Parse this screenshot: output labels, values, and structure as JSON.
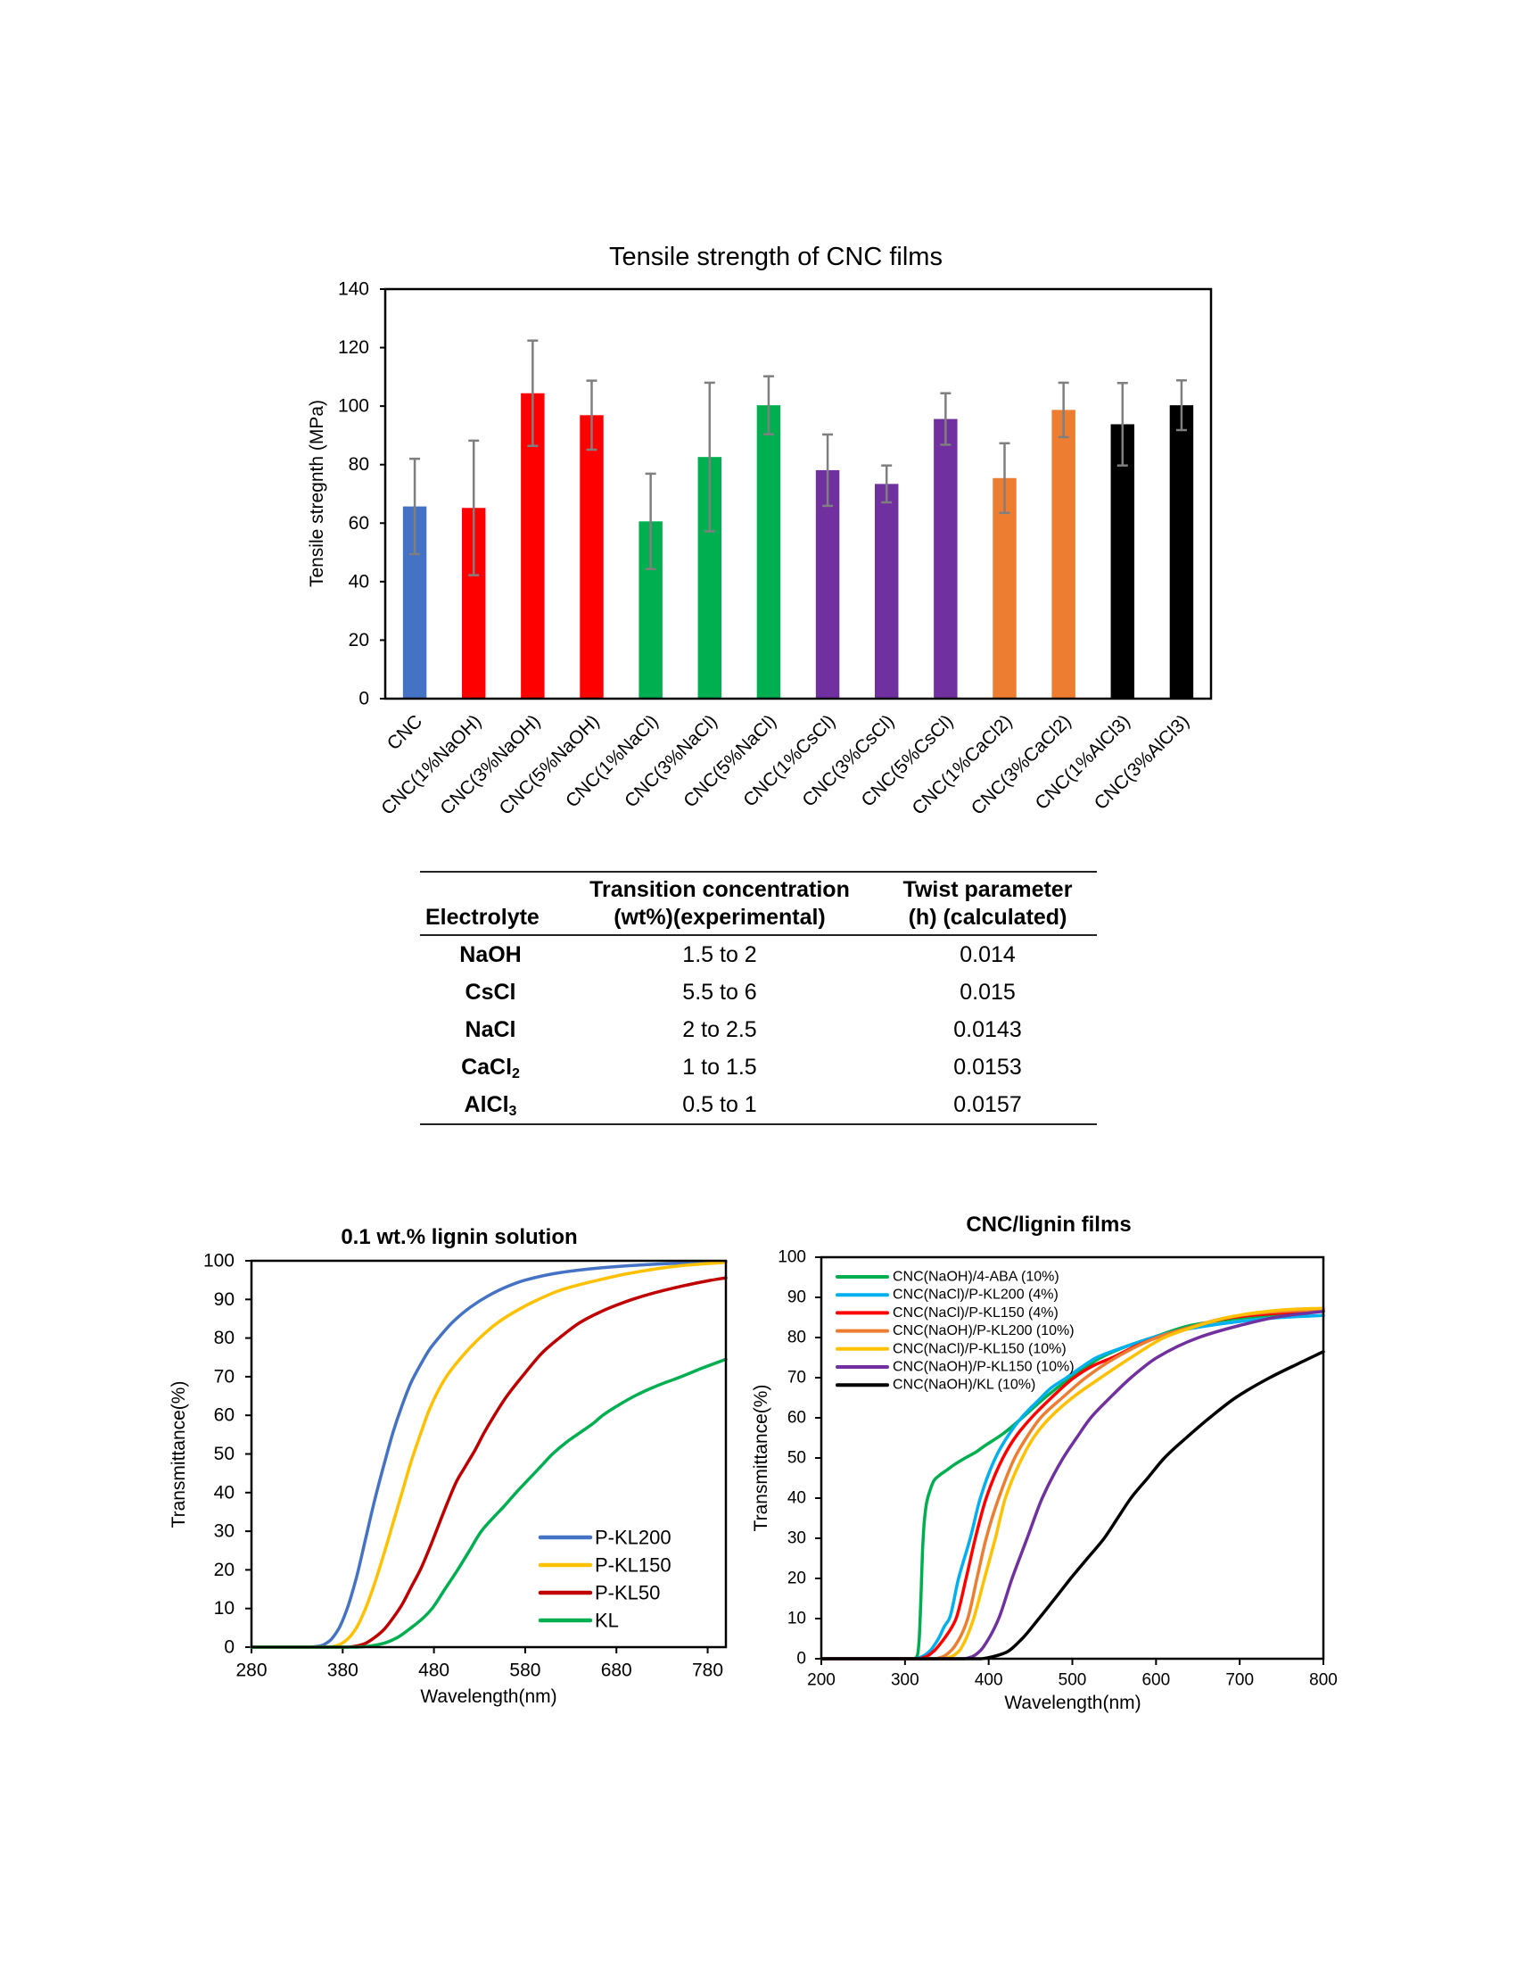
{
  "chart_data": [
    {
      "type": "bar",
      "title": "Tensile strength of CNC films",
      "xlabel": "",
      "ylabel": "Tensile stregnth (MPa)",
      "ylim": [
        0,
        140
      ],
      "yticks": [
        0,
        20,
        40,
        60,
        80,
        100,
        120,
        140
      ],
      "grid": false,
      "categories": [
        "CNC",
        "CNC(1%NaOH)",
        "CNC(3%NaOH)",
        "CNC(5%NaOH)",
        "CNC(1%NaCl)",
        "CNC(3%NaCl)",
        "CNC(5%NaCl)",
        "CNC(1%CsCl)",
        "CNC(3%CsCl)",
        "CNC(5%CsCl)",
        "CNC(1%CaCl2)",
        "CNC(3%CaCl2)",
        "CNC(1%AlCl3)",
        "CNC(3%AlCl3)"
      ],
      "values": [
        65.7,
        65.2,
        104.4,
        96.9,
        60.6,
        82.6,
        100.3,
        78.1,
        73.4,
        95.6,
        75.4,
        98.7,
        93.8,
        100.3
      ],
      "errors": [
        16.3,
        23.0,
        18.0,
        11.8,
        16.3,
        25.4,
        9.9,
        12.2,
        6.3,
        8.8,
        11.9,
        9.3,
        14.1,
        8.5
      ],
      "colors": [
        "#4472C4",
        "#FF0000",
        "#FF0000",
        "#FF0000",
        "#00B050",
        "#00B050",
        "#00B050",
        "#7030A0",
        "#7030A0",
        "#7030A0",
        "#ED7D31",
        "#ED7D31",
        "#000000",
        "#000000"
      ],
      "error_color": "#7F7F7F"
    },
    {
      "type": "table",
      "columns": [
        {
          "lines": [
            "Electrolyte"
          ]
        },
        {
          "lines": [
            "Transition concentration",
            "(wt%)(experimental)"
          ]
        },
        {
          "lines": [
            "Twist parameter",
            "(h) (calculated)"
          ]
        }
      ],
      "rows": [
        {
          "electrolyte": "NaOH",
          "sub": "",
          "transition": "1.5 to 2",
          "twist": "0.014"
        },
        {
          "electrolyte": "CsCl",
          "sub": "",
          "transition": "5.5 to 6",
          "twist": "0.015"
        },
        {
          "electrolyte": "NaCl",
          "sub": "",
          "transition": "2 to 2.5",
          "twist": "0.0143"
        },
        {
          "electrolyte": "CaCl",
          "sub": "2",
          "transition": "1 to 1.5",
          "twist": "0.0153"
        },
        {
          "electrolyte": "AlCl",
          "sub": "3",
          "transition": "0.5 to 1",
          "twist": "0.0157"
        }
      ]
    },
    {
      "type": "line",
      "title": "0.1 wt.% lignin solution",
      "xlabel": "Wavelength(nm)",
      "ylabel": "Transmittance(%)",
      "xlim": [
        280,
        800
      ],
      "ylim": [
        0,
        100
      ],
      "xticks": [
        280,
        380,
        480,
        580,
        680,
        780
      ],
      "yticks": [
        0,
        10,
        20,
        30,
        40,
        50,
        60,
        70,
        80,
        90,
        100
      ],
      "grid": false,
      "legend": "bottom-right",
      "series": [
        {
          "name": "P-KL200",
          "color": "#4472C4",
          "x": [
            280,
            340,
            355,
            365,
            375,
            385,
            395,
            405,
            415,
            425,
            435,
            445,
            455,
            465,
            475,
            485,
            500,
            520,
            540,
            560,
            580,
            620,
            680,
            740,
            800
          ],
          "y": [
            0,
            0,
            0.3,
            1.5,
            4.5,
            10,
            18,
            28,
            38,
            47,
            55.5,
            62.5,
            68.5,
            73,
            77,
            80,
            84,
            88,
            91,
            93.3,
            95,
            97,
            98.5,
            99.3,
            99.8
          ]
        },
        {
          "name": "P-KL150",
          "color": "#FFC000",
          "x": [
            280,
            365,
            375,
            385,
            395,
            405,
            415,
            425,
            435,
            445,
            455,
            465,
            475,
            485,
            495,
            510,
            530,
            550,
            570,
            590,
            620,
            660,
            700,
            750,
            800
          ],
          "y": [
            0,
            0,
            0.5,
            2,
            5,
            10,
            16.5,
            24,
            32,
            40,
            48,
            55,
            61.5,
            66.5,
            70.5,
            75,
            80,
            84,
            87,
            89.5,
            92.5,
            95,
            97,
            98.7,
            99.6
          ]
        },
        {
          "name": "P-KL50",
          "color": "#C00000",
          "x": [
            280,
            385,
            395,
            405,
            415,
            425,
            435,
            445,
            455,
            465,
            475,
            485,
            495,
            505,
            515,
            525,
            535,
            545,
            560,
            580,
            600,
            620,
            640,
            660,
            680,
            700,
            740,
            780,
            800
          ],
          "y": [
            0,
            0,
            0.3,
            1,
            2.5,
            4.5,
            7.5,
            11,
            15.5,
            20,
            25.5,
            31.5,
            37.5,
            43,
            47,
            51,
            55.5,
            59.5,
            65,
            71,
            76.5,
            80.5,
            84,
            86.5,
            88.5,
            90.2,
            92.8,
            94.8,
            95.6
          ]
        },
        {
          "name": "KL",
          "color": "#00B050",
          "x": [
            280,
            395,
            410,
            425,
            440,
            455,
            468,
            478,
            492,
            506,
            519,
            532,
            545,
            557,
            570,
            580,
            590,
            600,
            610,
            625,
            640,
            655,
            665,
            680,
            700,
            725,
            751,
            775,
            800
          ],
          "y": [
            0,
            0,
            0.3,
            1,
            2.5,
            5,
            7.5,
            10,
            15,
            20,
            25,
            30,
            33.5,
            36.5,
            40,
            42.5,
            45,
            47.5,
            50,
            53,
            55.5,
            58,
            60,
            62.3,
            65,
            67.7,
            70,
            72.3,
            74.5
          ]
        }
      ]
    },
    {
      "type": "line",
      "title": "CNC/lignin films",
      "xlabel": "Wavelength(nm)",
      "ylabel": "Transmittance(%)",
      "xlim": [
        200,
        800
      ],
      "ylim": [
        0,
        100
      ],
      "xticks": [
        200,
        300,
        400,
        500,
        600,
        700,
        800
      ],
      "yticks": [
        0,
        10,
        20,
        30,
        40,
        50,
        60,
        70,
        80,
        90,
        100
      ],
      "grid": false,
      "legend": "top-left",
      "series": [
        {
          "name": "CNC(NaOH)/4-ABA (10%)",
          "color": "#00B050",
          "x": [
            200,
            312,
            315,
            317,
            319,
            321,
            323,
            326,
            330,
            335,
            340,
            350,
            360,
            372,
            385,
            395,
            417,
            440,
            467,
            498,
            534,
            565,
            596,
            641,
            680,
            709,
            750,
            800
          ],
          "y": [
            0,
            0,
            1,
            5,
            15,
            27,
            34,
            39,
            42,
            44.5,
            45.5,
            47,
            48.5,
            50,
            51.5,
            53,
            56,
            60,
            65,
            70,
            75,
            77.8,
            80,
            83,
            84.3,
            85,
            85.8,
            86.5
          ]
        },
        {
          "name": "CNC(NaCl)/P-KL200 (4%)",
          "color": "#00B0F0",
          "x": [
            200,
            310,
            320,
            330,
            340,
            347,
            353,
            364,
            378,
            390,
            408,
            420,
            439,
            460,
            475,
            493,
            510,
            529,
            560,
            596,
            630,
            664,
            700,
            750,
            800
          ],
          "y": [
            0,
            0,
            0.5,
            2,
            5,
            8,
            10,
            20,
            30,
            40,
            50,
            54.5,
            60,
            64.5,
            67.5,
            70,
            72.5,
            75,
            77.5,
            80,
            81.8,
            83,
            84,
            85,
            85.5
          ]
        },
        {
          "name": "CNC(NaCl)/P-KL150 (4%)",
          "color": "#FF0000",
          "x": [
            200,
            315,
            325,
            335,
            345,
            355,
            361,
            373,
            384,
            397,
            417,
            433,
            451,
            475,
            502,
            525,
            548,
            575,
            601,
            640,
            691,
            730,
            760,
            800
          ],
          "y": [
            0,
            0,
            0.5,
            2,
            4.5,
            7.5,
            10,
            20,
            30,
            40,
            50,
            55.5,
            60,
            65,
            70,
            73,
            75,
            77.8,
            80,
            82.5,
            85,
            85.8,
            86.3,
            86.8
          ]
        },
        {
          "name": "CNC(NaOH)/P-KL200 (10%)",
          "color": "#ED7D31",
          "x": [
            200,
            335,
            345,
            355,
            365,
            375,
            386,
            397,
            412,
            431,
            445,
            462,
            488,
            516,
            552,
            601,
            640,
            686,
            720,
            760,
            800
          ],
          "y": [
            0,
            0,
            0.5,
            2,
            5,
            10,
            20,
            30,
            40,
            50,
            55,
            60,
            65,
            70,
            75,
            80,
            82.5,
            85,
            86,
            86.6,
            87
          ]
        },
        {
          "name": "CNC(NaCl)/P-KL150 (10%)",
          "color": "#FFC000",
          "x": [
            200,
            345,
            355,
            365,
            373,
            382,
            395,
            408,
            420,
            440,
            455,
            473,
            500,
            534,
            570,
            610,
            640,
            686,
            720,
            760,
            800
          ],
          "y": [
            0,
            0,
            0.5,
            2,
            5,
            10,
            20,
            30,
            40,
            50,
            55.5,
            60,
            65,
            70,
            75,
            80,
            82.3,
            85,
            86.2,
            87,
            87.3
          ]
        },
        {
          "name": "CNC(NaOH)/P-KL150 (10%)",
          "color": "#7030A0",
          "x": [
            200,
            370,
            380,
            390,
            400,
            412,
            428,
            446,
            464,
            489,
            505,
            522,
            545,
            570,
            601,
            651,
            700,
            750,
            800
          ],
          "y": [
            0,
            0,
            0.5,
            2,
            5,
            10,
            20,
            30,
            40,
            50,
            55,
            60,
            65,
            70,
            75,
            80,
            83,
            85.3,
            86.5
          ]
        },
        {
          "name": "CNC(NaOH)/KL (10%)",
          "color": "#000000",
          "x": [
            200,
            390,
            400,
            420,
            440,
            460,
            480,
            498,
            518,
            538,
            554,
            570,
            590,
            610,
            636,
            664,
            695,
            736,
            770,
            800
          ],
          "y": [
            0,
            0,
            0.3,
            1.5,
            5,
            10,
            15.2,
            20,
            25,
            30,
            35,
            40,
            45,
            50,
            55,
            60,
            65,
            70,
            73.5,
            76.5
          ]
        }
      ]
    }
  ]
}
